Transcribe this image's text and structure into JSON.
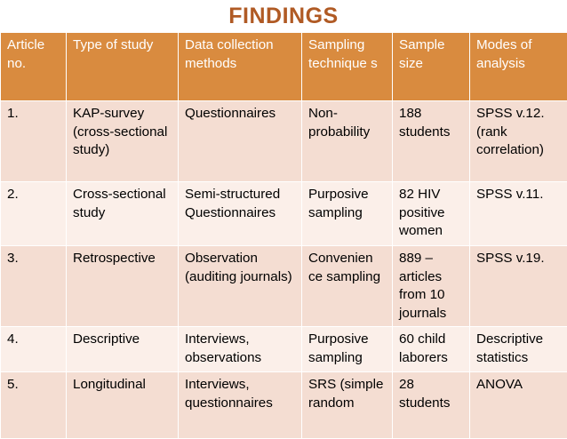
{
  "title": "FINDINGS",
  "headers": [
    "Article no.",
    "Type of study",
    "Data collection methods",
    "Sampling technique s",
    "Sample size",
    "Modes of analysis"
  ],
  "rows": [
    [
      "1.",
      "KAP-survey (cross-sectional study)",
      "Questionnaires",
      "Non-probability",
      "188 students",
      "SPSS v.12. (rank correlation)"
    ],
    [
      "2.",
      "Cross-sectional study",
      "Semi-structured Questionnaires",
      "Purposive sampling",
      "82 HIV positive women",
      "SPSS v.11."
    ],
    [
      "3.",
      "Retrospective",
      "Observation (auditing journals)",
      "Convenien ce sampling",
      "889 – articles from 10 journals",
      "SPSS v.19."
    ],
    [
      "4.",
      "Descriptive",
      "Interviews, observations",
      "Purposive sampling",
      "60 child laborers",
      "Descriptive statistics"
    ],
    [
      "5.",
      "Longitudinal",
      "Interviews, questionnaires",
      "SRS (simple random",
      "28 students",
      "ANOVA"
    ]
  ],
  "colors": {
    "title": "#b05a24",
    "header_bg": "#d98b3f",
    "row_bg_dark": "#f4ddd2",
    "row_bg_light": "#fbefe9"
  }
}
